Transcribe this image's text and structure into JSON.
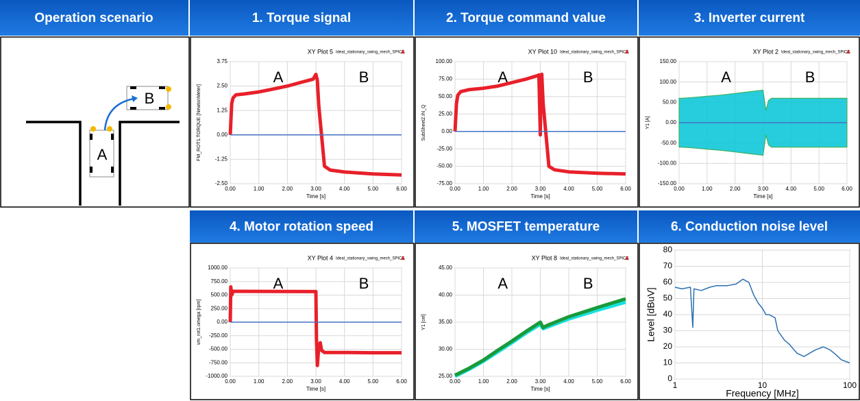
{
  "scenario": {
    "title": "Operation scenario",
    "car_a": "A",
    "car_b": "B"
  },
  "chart_data": [
    {
      "type": "line",
      "title": "1. Torque signal",
      "plot_name": "XY Plot 5",
      "source": "Ideal_stationary_swing_mech_SPICE",
      "xlabel": "Time [s]",
      "ylabel": "FM_ROT1.TORQUE [NewtonMeter]",
      "annotations": [
        "A",
        "B"
      ],
      "grid": true,
      "x": [
        0,
        0.05,
        0.1,
        0.2,
        0.5,
        1,
        1.5,
        2,
        2.5,
        2.9,
        3.0,
        3.05,
        3.1,
        3.3,
        3.5,
        4,
        5,
        6
      ],
      "series": [
        {
          "color": "#e8202a",
          "values": [
            0,
            1.6,
            1.9,
            2.05,
            2.1,
            2.2,
            2.35,
            2.5,
            2.7,
            2.85,
            3.1,
            2.8,
            1.5,
            -1.6,
            -1.8,
            -1.9,
            -2.0,
            -2.05
          ]
        },
        {
          "color": "#4472c4",
          "x": [
            0,
            6
          ],
          "values": [
            0,
            0
          ]
        }
      ],
      "xlim": [
        0,
        6
      ],
      "ylim": [
        -2.5,
        3.75
      ],
      "xticks": [
        {
          "value": 0,
          "label": "0.00"
        },
        {
          "value": 1,
          "label": "1.00"
        },
        {
          "value": 2,
          "label": "2.00"
        },
        {
          "value": 3,
          "label": "3.00"
        },
        {
          "value": 4,
          "label": "4.00"
        },
        {
          "value": 5,
          "label": "5.00"
        },
        {
          "value": 6,
          "label": "6.00"
        }
      ],
      "yticks": [
        {
          "value": -2.5,
          "label": "-2.50"
        },
        -1.25,
        {
          "value": 0,
          "label": "0.00"
        },
        1.25,
        {
          "value": 2.5,
          "label": "2.50"
        },
        3.75
      ]
    },
    {
      "type": "line",
      "title": "2. Torque command value",
      "plot_name": "XY Plot 10",
      "source": "Ideal_stationary_swing_mech_SPICE",
      "xlabel": "Time [s]",
      "ylabel": "SubSheet2.IN_Q",
      "annotations": [
        "A",
        "B"
      ],
      "grid": true,
      "x": [
        0,
        0.05,
        0.1,
        0.2,
        0.5,
        1,
        1.5,
        2,
        2.5,
        2.9,
        2.95,
        3.0,
        3.02,
        3.05,
        3.1,
        3.3,
        3.5,
        4,
        5,
        6
      ],
      "series": [
        {
          "color": "#e8202a",
          "values": [
            0,
            40,
            52,
            57,
            60,
            62,
            65,
            70,
            75,
            80,
            81,
            -5,
            78,
            82,
            40,
            -50,
            -55,
            -58,
            -60,
            -61
          ]
        },
        {
          "color": "#4472c4",
          "x": [
            0,
            6
          ],
          "values": [
            0,
            0
          ]
        }
      ],
      "xlim": [
        0,
        6
      ],
      "ylim": [
        -75,
        100
      ],
      "xticks": [
        {
          "value": 0,
          "label": "0.00"
        },
        {
          "value": 1,
          "label": "1.00"
        },
        {
          "value": 2,
          "label": "2.00"
        },
        {
          "value": 3,
          "label": "3.00"
        },
        {
          "value": 4,
          "label": "4.00"
        },
        {
          "value": 5,
          "label": "5.00"
        },
        {
          "value": 6,
          "label": "6.00"
        }
      ],
      "yticks": [
        {
          "value": -75,
          "label": "-75.00"
        },
        {
          "value": -50,
          "label": "-50.00"
        },
        {
          "value": -25,
          "label": "-25.00"
        },
        {
          "value": 0,
          "label": "0.00"
        },
        {
          "value": 25,
          "label": "25.00"
        },
        {
          "value": 50,
          "label": "50.00"
        },
        {
          "value": 75,
          "label": "75.00"
        },
        {
          "value": 100,
          "label": "100.00"
        }
      ]
    },
    {
      "type": "band",
      "title": "3. Inverter current",
      "plot_name": "XY Plot 2",
      "source": "Ideal_stationary_swing_mech_SPICE",
      "xlabel": "Time [s]",
      "ylabel": "Y1 [A]",
      "annotations": [
        "A",
        "B"
      ],
      "grid": true,
      "x": [
        0,
        0.1,
        0.5,
        1,
        1.5,
        2,
        2.5,
        3,
        3.1,
        3.2,
        3.3,
        4,
        5,
        6
      ],
      "series": [
        {
          "color": "#10c8d8",
          "values": [
            60,
            60,
            62,
            65,
            68,
            72,
            76,
            80,
            30,
            55,
            60,
            60,
            60,
            60
          ]
        },
        {
          "color": "#10c8d8",
          "values": [
            -60,
            -60,
            -62,
            -65,
            -68,
            -72,
            -76,
            -80,
            -30,
            -55,
            -60,
            -60,
            -60,
            -60
          ]
        },
        {
          "color": "#4472c4",
          "x": [
            0,
            6
          ],
          "values": [
            0,
            0
          ]
        }
      ],
      "xlim": [
        0,
        6
      ],
      "ylim": [
        -150,
        150
      ],
      "xticks": [
        {
          "value": 0,
          "label": "0.00"
        },
        {
          "value": 1,
          "label": "1.00"
        },
        {
          "value": 2,
          "label": "2.00"
        },
        {
          "value": 3,
          "label": "3.00"
        },
        {
          "value": 4,
          "label": "4.00"
        },
        {
          "value": 5,
          "label": "5.00"
        },
        {
          "value": 6,
          "label": "6.00"
        }
      ],
      "yticks": [
        {
          "value": -150,
          "label": "-150.00"
        },
        {
          "value": -100,
          "label": "-100.00"
        },
        {
          "value": -50,
          "label": "-50.00"
        },
        {
          "value": 0,
          "label": "0.00"
        },
        {
          "value": 50,
          "label": "50.00"
        },
        {
          "value": 100,
          "label": "100.00"
        },
        {
          "value": 150,
          "label": "150.00"
        }
      ]
    },
    {
      "type": "line",
      "title": "4. Motor rotation speed",
      "plot_name": "XY Plot 4",
      "source": "Ideal_stationary_swing_mech_SPICE",
      "xlabel": "Time [s]",
      "ylabel": "vm_rot1.omega [rpm]",
      "annotations": [
        "A",
        "B"
      ],
      "grid": true,
      "x": [
        0,
        0.02,
        0.05,
        0.1,
        0.2,
        3.0,
        3.02,
        3.05,
        3.1,
        3.15,
        3.2,
        3.3,
        3.5,
        4,
        5,
        6
      ],
      "series": [
        {
          "color": "#e8202a",
          "values": [
            0,
            650,
            500,
            570,
            570,
            565,
            -300,
            -800,
            -450,
            -380,
            -520,
            -560,
            -560,
            -560,
            -565,
            -565
          ]
        },
        {
          "color": "#4472c4",
          "x": [
            0,
            6
          ],
          "values": [
            0,
            0
          ]
        }
      ],
      "xlim": [
        0,
        6
      ],
      "ylim": [
        -1000,
        1000
      ],
      "xticks": [
        {
          "value": 0,
          "label": "0.00"
        },
        {
          "value": 1,
          "label": "1.00"
        },
        {
          "value": 2,
          "label": "2.00"
        },
        {
          "value": 3,
          "label": "3.00"
        },
        {
          "value": 4,
          "label": "4.00"
        },
        {
          "value": 5,
          "label": "5.00"
        },
        {
          "value": 6,
          "label": "6.00"
        }
      ],
      "yticks": [
        {
          "value": -1000,
          "label": "-1000.00"
        },
        {
          "value": -750,
          "label": "-750.00"
        },
        {
          "value": -500,
          "label": "-500.00"
        },
        {
          "value": -250,
          "label": "-250.00"
        },
        {
          "value": 0,
          "label": "0.00"
        },
        {
          "value": 250,
          "label": "250.00"
        },
        {
          "value": 500,
          "label": "500.00"
        },
        {
          "value": 750,
          "label": "750.00"
        },
        {
          "value": 1000,
          "label": "1000.00"
        }
      ]
    },
    {
      "type": "line",
      "title": "5. MOSFET temperature",
      "plot_name": "XY Plot 8",
      "source": "Ideal_stationary_swing_mech_SPICE",
      "xlabel": "Time [s]",
      "ylabel": "Y1 [cel]",
      "annotations": [
        "A",
        "B"
      ],
      "grid": true,
      "x": [
        0,
        0.5,
        1,
        1.5,
        2,
        2.5,
        3,
        3.1,
        3.2,
        4,
        5,
        6
      ],
      "series": [
        {
          "color": "#18e0e0",
          "values": [
            25,
            26.3,
            27.8,
            29.5,
            31.2,
            33,
            34.6,
            33.8,
            34,
            35.6,
            37.2,
            38.7
          ]
        },
        {
          "color": "#1a9a3a",
          "values": [
            25.2,
            26.5,
            28,
            29.8,
            31.5,
            33.3,
            35,
            34,
            34.3,
            36,
            37.7,
            39.3
          ]
        }
      ],
      "xlim": [
        0,
        6
      ],
      "ylim": [
        25,
        45
      ],
      "xticks": [
        {
          "value": 0,
          "label": "0.00"
        },
        {
          "value": 1,
          "label": "1.00"
        },
        {
          "value": 2,
          "label": "2.00"
        },
        {
          "value": 3,
          "label": "3.00"
        },
        {
          "value": 4,
          "label": "4.00"
        },
        {
          "value": 5,
          "label": "5.00"
        },
        {
          "value": 6,
          "label": "6.00"
        }
      ],
      "yticks": [
        {
          "value": 25,
          "label": "25.00"
        },
        {
          "value": 30,
          "label": "30.00"
        },
        {
          "value": 35,
          "label": "35.00"
        },
        {
          "value": 40,
          "label": "40.00"
        },
        {
          "value": 45,
          "label": "45.00"
        }
      ]
    },
    {
      "type": "line",
      "title": "6. Conduction noise level",
      "xlabel": "Frequency [MHz]",
      "ylabel": "Level [dBuV]",
      "grid": true,
      "xscale": "log",
      "x": [
        1,
        1.2,
        1.5,
        1.6,
        1.65,
        2,
        2.5,
        3,
        4,
        5,
        6,
        7,
        8,
        9,
        10,
        11,
        12,
        14,
        15,
        18,
        20,
        25,
        30,
        40,
        50,
        60,
        70,
        80,
        100
      ],
      "series": [
        {
          "color": "#2a6fb0",
          "values": [
            57,
            56,
            57,
            32,
            56,
            55,
            57,
            58,
            58,
            59,
            62,
            60,
            52,
            47,
            44,
            40,
            40,
            38,
            30,
            24,
            22,
            16,
            14,
            18,
            20,
            18,
            15,
            12,
            10
          ]
        }
      ],
      "xlim": [
        1,
        100
      ],
      "ylim": [
        0,
        80
      ],
      "xticks": [
        1,
        10,
        100
      ],
      "yticks": [
        0,
        10,
        20,
        30,
        40,
        50,
        60,
        70,
        80
      ]
    }
  ]
}
